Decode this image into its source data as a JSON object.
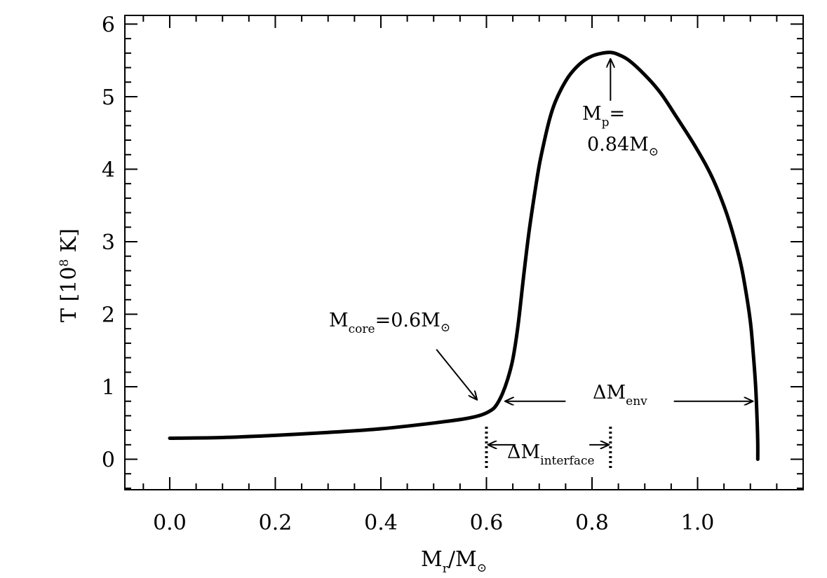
{
  "chart_data": {
    "type": "line",
    "title": "",
    "xlabel": {
      "main": "M",
      "sub": "r",
      "rest": "/M",
      "sun": "⊙"
    },
    "ylabel": {
      "prefix": "T [10",
      "sup": "8",
      "suffix": " K]"
    },
    "xlim": [
      -0.085,
      1.2
    ],
    "ylim": [
      -0.42,
      6.12
    ],
    "xticks": [
      0.0,
      0.2,
      0.4,
      0.6,
      0.8,
      1.0
    ],
    "xtick_labels": [
      "0.0",
      "0.2",
      "0.4",
      "0.6",
      "0.8",
      "1.0"
    ],
    "yticks": [
      0,
      1,
      2,
      3,
      4,
      5,
      6
    ],
    "ytick_labels": [
      "0",
      "1",
      "2",
      "3",
      "4",
      "5",
      "6"
    ],
    "grid": false,
    "legend": "none",
    "series": [
      {
        "x": [
          0.0,
          0.1,
          0.2,
          0.3,
          0.4,
          0.5,
          0.56,
          0.59,
          0.61,
          0.62,
          0.63,
          0.64,
          0.65,
          0.66,
          0.67,
          0.68,
          0.69,
          0.7,
          0.71,
          0.72,
          0.73,
          0.745,
          0.76,
          0.78,
          0.8,
          0.82,
          0.835,
          0.85,
          0.87,
          0.9,
          0.93,
          0.96,
          0.99,
          1.02,
          1.04,
          1.06,
          1.08,
          1.09,
          1.1,
          1.105,
          1.11,
          1.113,
          1.114,
          1.114
        ],
        "y": [
          0.29,
          0.3,
          0.33,
          0.37,
          0.42,
          0.5,
          0.56,
          0.61,
          0.68,
          0.76,
          0.9,
          1.1,
          1.38,
          1.85,
          2.5,
          3.1,
          3.6,
          4.05,
          4.4,
          4.7,
          4.92,
          5.15,
          5.32,
          5.47,
          5.56,
          5.6,
          5.61,
          5.58,
          5.5,
          5.3,
          5.05,
          4.72,
          4.38,
          4.0,
          3.68,
          3.28,
          2.75,
          2.38,
          1.9,
          1.5,
          1.0,
          0.5,
          0.2,
          0.0
        ]
      }
    ],
    "annotations": {
      "mp": {
        "label": "M",
        "sub": "p",
        "eq": "=",
        "value": "0.84M",
        "sun": "⊙",
        "at": [
          0.835,
          5.6
        ]
      },
      "mcore": {
        "label": "M",
        "sub": "core",
        "value": "=0.6M",
        "sun": "⊙",
        "at": [
          0.585,
          0.78
        ]
      },
      "env": {
        "label": "ΔM",
        "sub": "env",
        "from": 0.635,
        "to": 1.105,
        "y": 0.8
      },
      "interface": {
        "label": "ΔM",
        "sub": "interface",
        "from": 0.6,
        "to": 0.835,
        "y": 0.2
      }
    },
    "dotted_markers": [
      {
        "x": 0.6,
        "y0": -0.12,
        "y1": 0.46
      },
      {
        "x": 0.835,
        "y0": -0.12,
        "y1": 0.46
      }
    ]
  }
}
